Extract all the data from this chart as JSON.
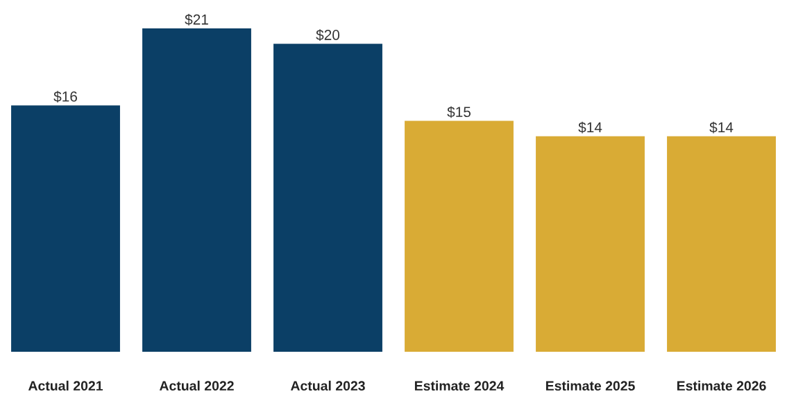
{
  "chart_data": {
    "type": "bar",
    "categories": [
      "Actual 2021",
      "Actual 2022",
      "Actual 2023",
      "Estimate 2024",
      "Estimate 2025",
      "Estimate 2026"
    ],
    "values": [
      16,
      21,
      20,
      15,
      14,
      14
    ],
    "value_labels": [
      "$16",
      "$21",
      "$20",
      "$15",
      "$14",
      "$14"
    ],
    "colors": [
      "#0b3f66",
      "#0b3f66",
      "#0b3f66",
      "#d9ab35",
      "#d9ab35",
      "#d9ab35"
    ],
    "grid": false,
    "legend": false
  }
}
